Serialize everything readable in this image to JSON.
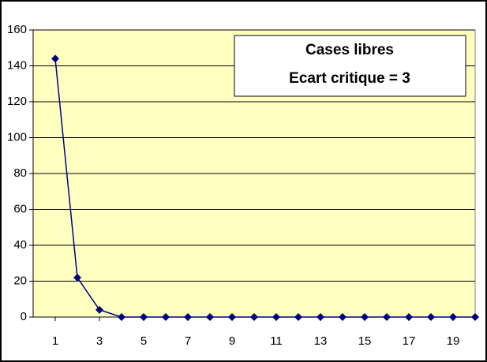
{
  "chart_data": {
    "type": "line",
    "title": "Cases libres",
    "subtitle": "Ecart critique = 3",
    "x": [
      1,
      2,
      3,
      4,
      5,
      6,
      7,
      8,
      9,
      10,
      11,
      12,
      13,
      14,
      15,
      16,
      17,
      18,
      19,
      20
    ],
    "series": [
      {
        "name": "Cases libres",
        "color": "#000080",
        "values": [
          144,
          22,
          4,
          0,
          0,
          0,
          0,
          0,
          0,
          0,
          0,
          0,
          0,
          0,
          0,
          0,
          0,
          0,
          0,
          0
        ]
      }
    ],
    "xlim": [
      0,
      20
    ],
    "xticks": [
      1,
      3,
      5,
      7,
      9,
      11,
      13,
      15,
      17,
      19
    ],
    "ylim": [
      0,
      160
    ],
    "yticks": [
      0,
      20,
      40,
      60,
      80,
      100,
      120,
      140,
      160
    ],
    "grid": true,
    "background": "#ffffc0"
  }
}
